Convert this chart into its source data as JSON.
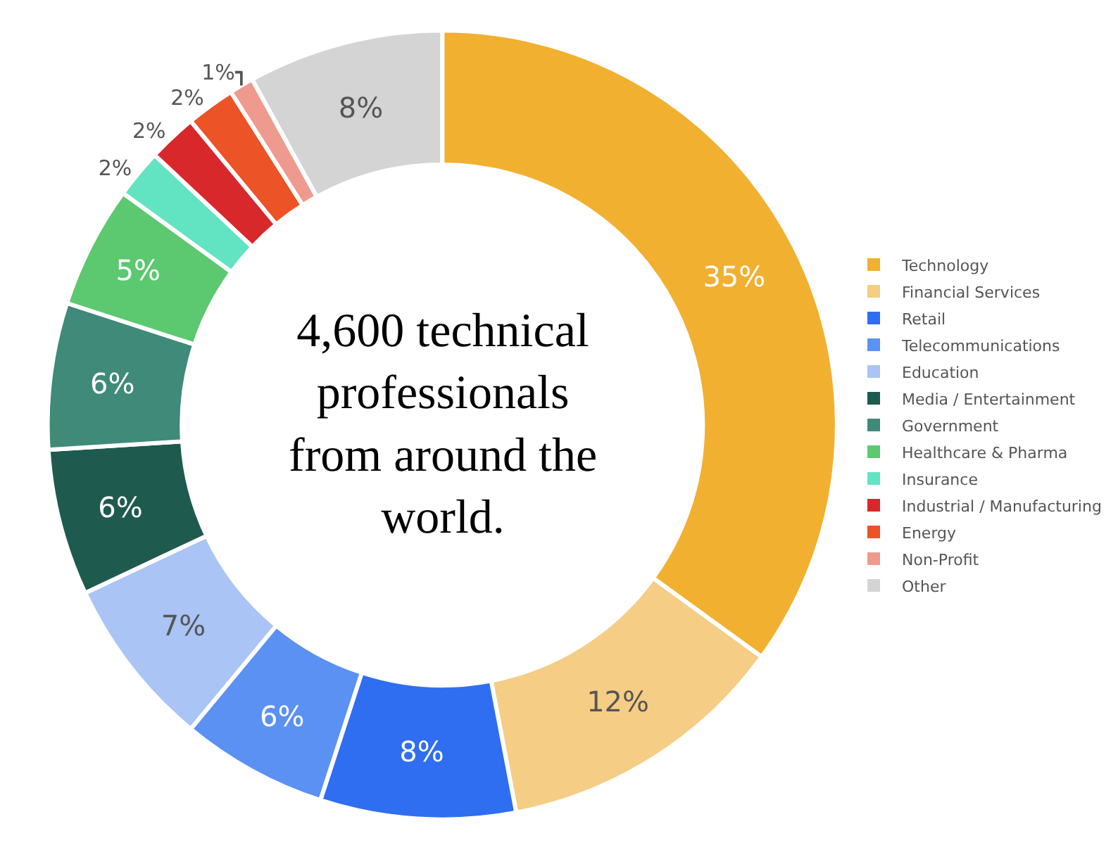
{
  "chart_data": {
    "type": "donut",
    "categories": [
      "Technology",
      "Financial Services",
      "Retail",
      "Telecommunications",
      "Education",
      "Media / Entertainment",
      "Government",
      "Healthcare & Pharma",
      "Insurance",
      "Industrial / Manufacturing",
      "Energy",
      "Non-Profit",
      "Other"
    ],
    "values": [
      35,
      12,
      8,
      6,
      7,
      6,
      6,
      5,
      2,
      2,
      2,
      1,
      8
    ],
    "value_labels": [
      "35%",
      "12%",
      "8%",
      "6%",
      "7%",
      "6%",
      "6%",
      "5%",
      "2%",
      "2%",
      "2%",
      "1%",
      "8%"
    ],
    "colors": [
      "#f2b030",
      "#f5cd85",
      "#2f6ef0",
      "#5a91f2",
      "#a9c4f5",
      "#1f5a4e",
      "#3f8a78",
      "#5cc870",
      "#62e3c2",
      "#d8282c",
      "#ec5326",
      "#ef9a8e",
      "#d4d4d4"
    ],
    "annotations": [
      "4,600 technical professionals from around the world."
    ],
    "legend": "right"
  }
}
